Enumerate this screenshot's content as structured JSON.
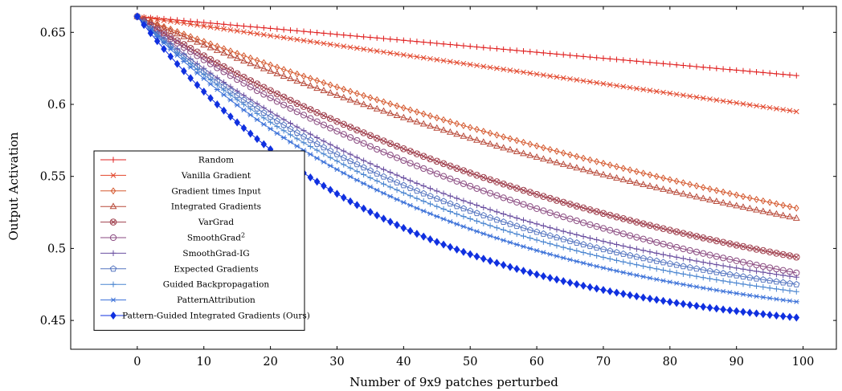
{
  "chart_data": {
    "type": "line",
    "xlabel": "Number of 9x9 patches perturbed",
    "ylabel": "Output Activation",
    "xlim": [
      -10,
      105
    ],
    "ylim": [
      0.43,
      0.668
    ],
    "xticks": [
      0,
      10,
      20,
      30,
      40,
      50,
      60,
      70,
      80,
      90,
      100
    ],
    "yticks": [
      0.45,
      0.5,
      0.55,
      0.6,
      0.65
    ],
    "ytick_labels": [
      "0.45",
      "0.5",
      "0.55",
      "0.6",
      "0.65"
    ],
    "grid": false,
    "legend_position": "lower-left",
    "x_range": [
      0,
      99
    ],
    "start_value": 0.661,
    "series": [
      {
        "name": "Random",
        "marker": "plus",
        "color": "#e02020",
        "filled": false,
        "end_value": 0.62,
        "shape": 0.0
      },
      {
        "name": "Vanilla Gradient",
        "marker": "x",
        "color": "#e2452a",
        "filled": false,
        "end_value": 0.595,
        "shape": 0.0
      },
      {
        "name": "Gradient times Input",
        "marker": "diamond",
        "color": "#d55a30",
        "filled": false,
        "end_value": 0.528,
        "shape": 0.6
      },
      {
        "name": "Integrated Gradients",
        "marker": "triangle",
        "color": "#b84a3a",
        "filled": false,
        "end_value": 0.521,
        "shape": 0.8
      },
      {
        "name": "VarGrad",
        "marker": "otimes",
        "color": "#a0404e",
        "filled": false,
        "end_value": 0.494,
        "shape": 1.2
      },
      {
        "name": "SmoothGrad",
        "name_sup": "2",
        "marker": "circle",
        "color": "#8a4a80",
        "filled": false,
        "end_value": 0.483,
        "shape": 1.3
      },
      {
        "name": "SmoothGrad-IG",
        "marker": "plus",
        "color": "#6a4fa0",
        "filled": false,
        "end_value": 0.48,
        "shape": 1.8
      },
      {
        "name": "Expected Gradients",
        "marker": "pentagon",
        "color": "#5575c0",
        "filled": false,
        "end_value": 0.475,
        "shape": 1.9
      },
      {
        "name": "Guided Backpropagation",
        "marker": "plus",
        "color": "#4a85d0",
        "filled": false,
        "end_value": 0.47,
        "shape": 2.0
      },
      {
        "name": "PatternAttribution",
        "marker": "star",
        "color": "#3a70d8",
        "filled": false,
        "end_value": 0.463,
        "shape": 2.1
      },
      {
        "name": "Pattern-Guided Integrated Gradients (Ours)",
        "marker": "diamond",
        "color": "#1030e0",
        "filled": true,
        "end_value": 0.452,
        "shape": 2.6
      }
    ]
  }
}
